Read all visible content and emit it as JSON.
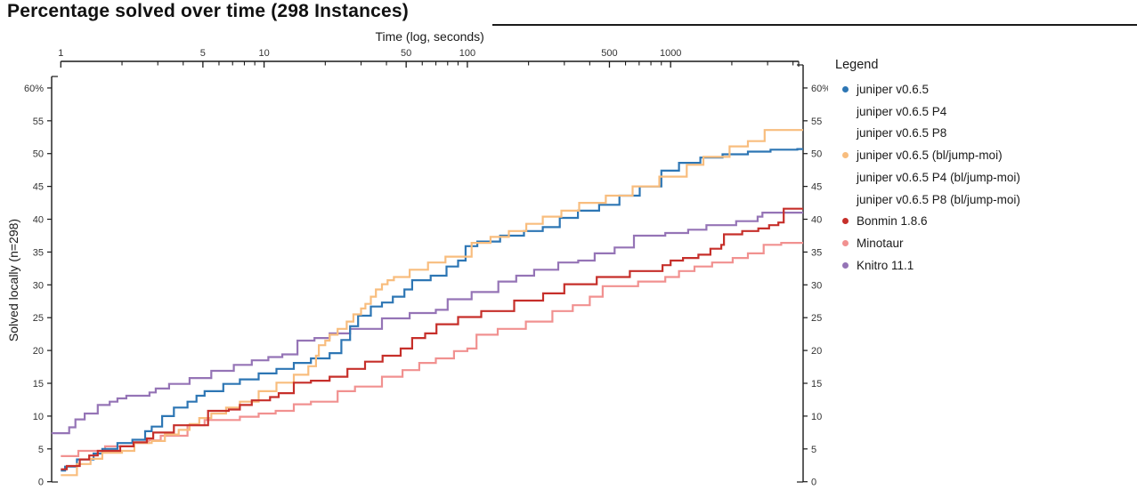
{
  "title": "Percentage solved over time (298 Instances)",
  "axes": {
    "x": {
      "title": "Time (log, seconds)",
      "scale": "log",
      "range": [
        1,
        4300
      ],
      "major_ticks": [
        1,
        5,
        10,
        50,
        100,
        500,
        1000
      ],
      "major_tick_labels": [
        "1",
        "5",
        "10",
        "50",
        "100",
        "500",
        "1000"
      ],
      "minor_ticks": [
        2,
        3,
        4,
        6,
        7,
        8,
        9,
        20,
        30,
        40,
        60,
        70,
        80,
        90,
        200,
        300,
        400,
        600,
        700,
        800,
        900,
        2000,
        3000,
        4000
      ]
    },
    "y_left": {
      "title": "Solved locally (n=298)",
      "range": [
        0,
        60
      ],
      "ticks": [
        0,
        5,
        10,
        15,
        20,
        25,
        30,
        35,
        40,
        45,
        50,
        55,
        60
      ],
      "tick_labels": [
        "0",
        "5",
        "10",
        "15",
        "20",
        "25",
        "30",
        "35",
        "40",
        "45",
        "50",
        "55",
        "60%"
      ]
    },
    "y_right": {
      "ticks": [
        0,
        5,
        10,
        15,
        20,
        25,
        30,
        35,
        40,
        45,
        50,
        55,
        60
      ],
      "tick_labels": [
        "0",
        "5",
        "10",
        "15",
        "20",
        "25",
        "30",
        "35",
        "40",
        "45",
        "50",
        "55",
        "60%"
      ]
    }
  },
  "legend": {
    "title": "Legend",
    "items": [
      {
        "label": "juniper v0.6.5",
        "color": "#2d76b4",
        "dot": true
      },
      {
        "label": "juniper v0.6.5 P4",
        "color": null,
        "dot": false
      },
      {
        "label": "juniper v0.6.5 P8",
        "color": null,
        "dot": false
      },
      {
        "label": "juniper v0.6.5 (bl/jump-moi)",
        "color": "#f8bd7e",
        "dot": true
      },
      {
        "label": "juniper v0.6.5 P4 (bl/jump-moi)",
        "color": null,
        "dot": false
      },
      {
        "label": "juniper v0.6.5 P8 (bl/jump-moi)",
        "color": null,
        "dot": false
      },
      {
        "label": "Bonmin 1.8.6",
        "color": "#c62f2a",
        "dot": true
      },
      {
        "label": "Minotaur",
        "color": "#f19190",
        "dot": true
      },
      {
        "label": "Knitro 11.1",
        "color": "#9574b6",
        "dot": true
      }
    ]
  },
  "chart_data": {
    "type": "line",
    "subtype": "step-after-survival",
    "x_unit": "seconds (log scale)",
    "y_unit": "percent of 298 instances solved locally",
    "xlim": [
      1,
      4300
    ],
    "ylim": [
      0,
      60
    ],
    "series": [
      {
        "name": "juniper v0.6.5",
        "color": "#2d76b4",
        "points": [
          [
            1.0,
            1.7
          ],
          [
            1.05,
            2.3
          ],
          [
            1.2,
            3.4
          ],
          [
            1.45,
            4.3
          ],
          [
            1.6,
            5.0
          ],
          [
            1.9,
            5.9
          ],
          [
            2.25,
            6.4
          ],
          [
            2.6,
            7.7
          ],
          [
            2.8,
            8.4
          ],
          [
            3.15,
            10.0
          ],
          [
            3.6,
            11.3
          ],
          [
            4.2,
            12.2
          ],
          [
            4.65,
            13.1
          ],
          [
            5.1,
            13.8
          ],
          [
            6.3,
            14.9
          ],
          [
            7.6,
            15.6
          ],
          [
            9.4,
            16.5
          ],
          [
            11.5,
            17.2
          ],
          [
            14,
            18.1
          ],
          [
            17,
            18.8
          ],
          [
            21,
            19.6
          ],
          [
            24,
            21.6
          ],
          [
            26.5,
            23.7
          ],
          [
            29,
            25.3
          ],
          [
            33.5,
            26.7
          ],
          [
            38,
            27.3
          ],
          [
            43,
            28.2
          ],
          [
            49,
            29.3
          ],
          [
            53.5,
            30.7
          ],
          [
            66,
            31.4
          ],
          [
            79,
            32.8
          ],
          [
            90,
            33.7
          ],
          [
            98,
            35.9
          ],
          [
            112,
            36.6
          ],
          [
            145,
            37.5
          ],
          [
            190,
            38.2
          ],
          [
            235,
            38.8
          ],
          [
            285,
            40.2
          ],
          [
            350,
            41.3
          ],
          [
            445,
            42.2
          ],
          [
            560,
            43.6
          ],
          [
            705,
            45.0
          ],
          [
            900,
            47.4
          ],
          [
            1100,
            48.6
          ],
          [
            1400,
            49.4
          ],
          [
            1800,
            49.9
          ],
          [
            2400,
            50.3
          ],
          [
            3100,
            50.6
          ],
          [
            4200,
            50.7
          ]
        ]
      },
      {
        "name": "juniper v0.6.5 (bl/jump-moi)",
        "color": "#f8bd7e",
        "points": [
          [
            1.0,
            1.0
          ],
          [
            1.2,
            2.7
          ],
          [
            1.4,
            3.5
          ],
          [
            1.6,
            4.4
          ],
          [
            2.0,
            4.7
          ],
          [
            2.3,
            5.9
          ],
          [
            2.8,
            6.2
          ],
          [
            3.25,
            7.2
          ],
          [
            3.8,
            7.9
          ],
          [
            4.3,
            8.8
          ],
          [
            4.8,
            9.7
          ],
          [
            5.5,
            10.4
          ],
          [
            6.5,
            11.3
          ],
          [
            7.6,
            12.2
          ],
          [
            9.4,
            13.8
          ],
          [
            11.5,
            15.1
          ],
          [
            14,
            16.3
          ],
          [
            16.5,
            17.6
          ],
          [
            18,
            19.2
          ],
          [
            18.6,
            20.8
          ],
          [
            20,
            21.5
          ],
          [
            21,
            22.4
          ],
          [
            23,
            23.3
          ],
          [
            25.5,
            24.4
          ],
          [
            27.5,
            25.5
          ],
          [
            30,
            26.4
          ],
          [
            31.5,
            27.1
          ],
          [
            33.5,
            28.2
          ],
          [
            35.5,
            29.3
          ],
          [
            38,
            30.1
          ],
          [
            40.5,
            30.7
          ],
          [
            43.5,
            31.2
          ],
          [
            52,
            32.3
          ],
          [
            64,
            33.4
          ],
          [
            78,
            34.3
          ],
          [
            105,
            36.4
          ],
          [
            130,
            37.3
          ],
          [
            160,
            38.2
          ],
          [
            195,
            39.3
          ],
          [
            235,
            40.4
          ],
          [
            290,
            41.3
          ],
          [
            355,
            42.5
          ],
          [
            480,
            43.6
          ],
          [
            650,
            45.0
          ],
          [
            880,
            46.5
          ],
          [
            1200,
            48.3
          ],
          [
            1450,
            49.5
          ],
          [
            1950,
            51.1
          ],
          [
            2400,
            51.9
          ],
          [
            2900,
            53.6
          ],
          [
            4200,
            53.6
          ]
        ]
      },
      {
        "name": "Bonmin 1.8.6",
        "color": "#c62f2a",
        "points": [
          [
            1.0,
            1.9
          ],
          [
            1.07,
            2.4
          ],
          [
            1.24,
            3.4
          ],
          [
            1.38,
            4.0
          ],
          [
            1.52,
            4.7
          ],
          [
            1.96,
            5.4
          ],
          [
            2.28,
            6.0
          ],
          [
            2.65,
            6.6
          ],
          [
            2.85,
            7.5
          ],
          [
            3.6,
            8.6
          ],
          [
            5.3,
            10.8
          ],
          [
            6.7,
            11.0
          ],
          [
            7.6,
            11.7
          ],
          [
            8.7,
            12.4
          ],
          [
            10.7,
            12.9
          ],
          [
            11.8,
            13.5
          ],
          [
            14,
            15.1
          ],
          [
            17,
            15.4
          ],
          [
            21,
            16.0
          ],
          [
            25.7,
            17.2
          ],
          [
            31.4,
            18.3
          ],
          [
            38.3,
            19.2
          ],
          [
            47,
            20.3
          ],
          [
            53.5,
            21.9
          ],
          [
            62,
            22.6
          ],
          [
            70.5,
            24.0
          ],
          [
            90,
            25.1
          ],
          [
            117,
            26.0
          ],
          [
            170,
            27.6
          ],
          [
            236,
            28.7
          ],
          [
            300,
            30.1
          ],
          [
            433,
            31.2
          ],
          [
            630,
            32.1
          ],
          [
            912,
            33.0
          ],
          [
            1000,
            33.7
          ],
          [
            1150,
            34.1
          ],
          [
            1370,
            34.6
          ],
          [
            1570,
            35.5
          ],
          [
            1775,
            36.1
          ],
          [
            1830,
            37.7
          ],
          [
            2250,
            38.2
          ],
          [
            2700,
            38.6
          ],
          [
            3050,
            39.1
          ],
          [
            3390,
            39.5
          ],
          [
            3600,
            41.6
          ],
          [
            4200,
            41.6
          ]
        ]
      },
      {
        "name": "Minotaur",
        "color": "#f19190",
        "points": [
          [
            1.0,
            3.9
          ],
          [
            1.22,
            4.7
          ],
          [
            1.65,
            5.4
          ],
          [
            2.28,
            5.9
          ],
          [
            2.7,
            6.3
          ],
          [
            3.1,
            7.0
          ],
          [
            4.2,
            8.6
          ],
          [
            5.1,
            9.4
          ],
          [
            7.6,
            9.9
          ],
          [
            9.4,
            10.4
          ],
          [
            11.4,
            10.8
          ],
          [
            14,
            11.8
          ],
          [
            17,
            12.2
          ],
          [
            23,
            13.8
          ],
          [
            28,
            14.5
          ],
          [
            38,
            16.0
          ],
          [
            48,
            17.0
          ],
          [
            58,
            18.1
          ],
          [
            70,
            18.8
          ],
          [
            86,
            19.9
          ],
          [
            100,
            20.3
          ],
          [
            111,
            22.4
          ],
          [
            141,
            23.3
          ],
          [
            194,
            24.4
          ],
          [
            262,
            26.0
          ],
          [
            330,
            26.9
          ],
          [
            400,
            28.2
          ],
          [
            463,
            29.8
          ],
          [
            692,
            30.5
          ],
          [
            941,
            31.2
          ],
          [
            1100,
            32.1
          ],
          [
            1310,
            32.8
          ],
          [
            1600,
            33.4
          ],
          [
            2020,
            34.1
          ],
          [
            2400,
            34.8
          ],
          [
            2870,
            36.1
          ],
          [
            3500,
            36.4
          ],
          [
            4200,
            36.4
          ]
        ]
      },
      {
        "name": "Knitro 11.1",
        "color": "#9574b6",
        "points": [
          [
            0.9,
            7.4
          ],
          [
            1.1,
            8.3
          ],
          [
            1.18,
            9.5
          ],
          [
            1.31,
            10.4
          ],
          [
            1.52,
            11.7
          ],
          [
            1.74,
            12.2
          ],
          [
            1.9,
            12.7
          ],
          [
            2.1,
            13.1
          ],
          [
            2.73,
            13.6
          ],
          [
            2.93,
            14.2
          ],
          [
            3.41,
            14.9
          ],
          [
            4.3,
            15.8
          ],
          [
            5.5,
            16.9
          ],
          [
            7.1,
            17.8
          ],
          [
            8.7,
            18.5
          ],
          [
            10.5,
            19.0
          ],
          [
            12.3,
            19.4
          ],
          [
            14.6,
            21.5
          ],
          [
            17.7,
            21.9
          ],
          [
            21,
            22.6
          ],
          [
            26.5,
            23.3
          ],
          [
            38,
            24.9
          ],
          [
            52,
            25.7
          ],
          [
            70,
            26.2
          ],
          [
            80,
            27.8
          ],
          [
            105,
            28.9
          ],
          [
            142,
            30.5
          ],
          [
            174,
            31.4
          ],
          [
            213,
            32.3
          ],
          [
            280,
            33.4
          ],
          [
            351,
            33.7
          ],
          [
            423,
            34.8
          ],
          [
            530,
            35.7
          ],
          [
            660,
            37.5
          ],
          [
            941,
            37.9
          ],
          [
            1220,
            38.4
          ],
          [
            1500,
            39.1
          ],
          [
            2100,
            39.7
          ],
          [
            2680,
            40.4
          ],
          [
            2830,
            41.0
          ],
          [
            4200,
            41.0
          ]
        ]
      }
    ]
  }
}
